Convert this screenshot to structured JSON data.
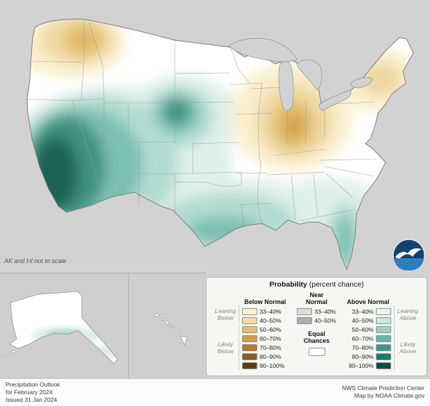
{
  "map": {
    "note": "AK and HI not to scale"
  },
  "legend": {
    "title_bold": "Probability",
    "title_rest": "(percent chance)",
    "columns": {
      "below": {
        "header": "Below Normal",
        "rows": [
          {
            "label": "33–40%",
            "color": "#FCF2CC"
          },
          {
            "label": "40–50%",
            "color": "#F1DBA3"
          },
          {
            "label": "50–60%",
            "color": "#E6BF6B"
          },
          {
            "label": "60–70%",
            "color": "#D39C45"
          },
          {
            "label": "70–80%",
            "color": "#B47B31"
          },
          {
            "label": "80–90%",
            "color": "#8E5B21"
          },
          {
            "label": "90–100%",
            "color": "#5F3D12"
          }
        ]
      },
      "near": {
        "header_line1": "Near",
        "header_line2": "Normal",
        "rows": [
          {
            "label": "33–40%",
            "color": "#DCDCDC"
          },
          {
            "label": "40–50%",
            "color": "#ACACAC"
          }
        ],
        "equal_line1": "Equal",
        "equal_line2": "Chances",
        "equal_color": "#FFFFFF"
      },
      "above": {
        "header": "Above Normal",
        "rows": [
          {
            "label": "33–40%",
            "color": "#EAF5F0"
          },
          {
            "label": "40–50%",
            "color": "#C9E7DE"
          },
          {
            "label": "50–60%",
            "color": "#9AD2C5"
          },
          {
            "label": "60–70%",
            "color": "#67B6A7"
          },
          {
            "label": "70–80%",
            "color": "#3F998A"
          },
          {
            "label": "80–90%",
            "color": "#1F776A"
          },
          {
            "label": "90–100%",
            "color": "#0C4F43"
          }
        ]
      }
    },
    "side_labels": {
      "leaning_below": [
        "Leaning",
        "Below"
      ],
      "likely_below": [
        "Likely",
        "Below"
      ],
      "leaning_above": [
        "Leaning",
        "Above"
      ],
      "likely_above": [
        "Likely",
        "Above"
      ]
    }
  },
  "footer": {
    "left_line1": "Precipitation Outlook",
    "left_line2": "for February 2024",
    "left_line3": "Issued 31 Jan 2024",
    "right_line1": "NWS Climate Prediction Center",
    "right_line2": "Map by NOAA Climate.gov"
  }
}
